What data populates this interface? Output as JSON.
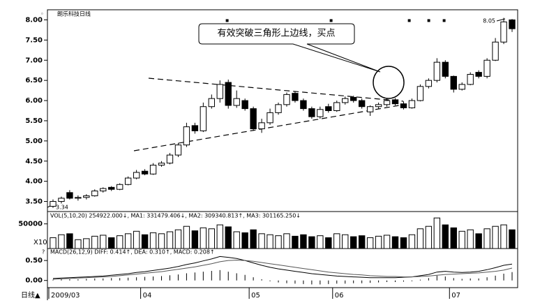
{
  "chart_data": {
    "type": "candlestick",
    "title": "朗乐科技日线",
    "annotation": "有效突破三角形上边线，买点",
    "period_label": "日线▲",
    "categories": [
      "2009/03",
      null,
      null,
      null,
      null,
      null,
      null,
      null,
      null,
      null,
      null,
      "04",
      null,
      null,
      null,
      null,
      null,
      null,
      null,
      null,
      null,
      null,
      null,
      null,
      "05",
      null,
      null,
      null,
      null,
      null,
      null,
      null,
      null,
      null,
      "06",
      null,
      null,
      null,
      null,
      null,
      null,
      null,
      null,
      null,
      null,
      null,
      null,
      null,
      "07",
      null,
      null,
      null,
      null,
      null,
      null,
      null
    ],
    "open": [
      3.38,
      3.5,
      3.72,
      3.58,
      3.6,
      3.64,
      3.76,
      3.85,
      3.8,
      3.92,
      4.08,
      4.25,
      4.18,
      4.4,
      4.45,
      4.65,
      4.9,
      5.38,
      5.25,
      5.85,
      6.05,
      6.45,
      5.88,
      6,
      5.8,
      5.3,
      5.45,
      5.7,
      5.9,
      6.18,
      6,
      5.8,
      5.6,
      5.85,
      5.75,
      5.95,
      6.08,
      6,
      5.72,
      5.85,
      5.9,
      6.02,
      5.92,
      5.82,
      6,
      6.35,
      6.5,
      6.95,
      6.6,
      6.28,
      6.4,
      6.7,
      6.6,
      7,
      7.45,
      8
    ],
    "high": [
      3.55,
      3.62,
      3.78,
      3.65,
      3.68,
      3.8,
      3.85,
      3.88,
      3.95,
      4.12,
      4.28,
      4.3,
      4.45,
      4.5,
      4.7,
      4.95,
      5.45,
      5.45,
      5.95,
      6.15,
      6.5,
      6.52,
      6.25,
      6.05,
      5.85,
      5.55,
      5.8,
      5.95,
      6.2,
      6.22,
      6.05,
      5.85,
      5.85,
      5.92,
      6,
      6.1,
      6.12,
      6.05,
      5.88,
      5.95,
      6.05,
      6.06,
      5.98,
      6.05,
      6.4,
      6.55,
      7.05,
      7,
      6.62,
      6.45,
      6.7,
      6.75,
      7.05,
      7.55,
      8.05,
      8.02
    ],
    "low": [
      3.34,
      3.45,
      3.55,
      3.52,
      3.55,
      3.62,
      3.72,
      3.76,
      3.78,
      3.9,
      4.05,
      4.15,
      4.16,
      4.36,
      4.42,
      4.6,
      4.85,
      5.18,
      5.22,
      5.8,
      5.95,
      5.8,
      5.82,
      5.75,
      5.25,
      5.2,
      5.4,
      5.65,
      5.85,
      5.95,
      5.75,
      5.55,
      5.55,
      5.7,
      5.72,
      5.9,
      5.95,
      5.8,
      5.62,
      5.8,
      5.85,
      5.88,
      5.78,
      5.8,
      5.98,
      6.3,
      6.45,
      6.55,
      6.2,
      6.25,
      6.38,
      6.55,
      6.55,
      6.98,
      7.4,
      7.7
    ],
    "close": [
      3.5,
      3.58,
      3.58,
      3.6,
      3.64,
      3.76,
      3.82,
      3.8,
      3.92,
      4.08,
      4.22,
      4.18,
      4.4,
      4.45,
      4.65,
      4.9,
      5.35,
      5.25,
      5.85,
      6.05,
      6.4,
      5.88,
      6.05,
      5.8,
      5.3,
      5.45,
      5.7,
      5.9,
      6.15,
      6,
      5.8,
      5.6,
      5.78,
      5.75,
      5.95,
      6.05,
      6,
      5.85,
      5.85,
      5.9,
      6,
      5.92,
      5.82,
      6,
      6.35,
      6.5,
      6.95,
      6.6,
      6.28,
      6.4,
      6.65,
      6.6,
      7,
      7.45,
      7.95,
      7.78
    ],
    "up_color": "#ffffff",
    "down_color": "#000000",
    "ylim": [
      3.25,
      8.25
    ],
    "yticks": [
      {
        "value": 3.5,
        "label": "3.50"
      },
      {
        "value": 4,
        "label": "4.00"
      },
      {
        "value": 4.5,
        "label": "4.50"
      },
      {
        "value": 5,
        "label": "5.00"
      },
      {
        "value": 5.5,
        "label": "5.50"
      },
      {
        "value": 6,
        "label": "6.00"
      },
      {
        "value": 6.5,
        "label": "6.50"
      },
      {
        "value": 7,
        "label": "7.00"
      },
      {
        "value": 7.5,
        "label": "7.50"
      },
      {
        "value": 8,
        "label": "8.00"
      }
    ],
    "volume": {
      "legend": "VOL(5,10,20) 254922.000↓, MA1: 331479.406↓, MA2: 309340.813↑, MA3: 301165.250↓",
      "unit_label": "X10",
      "values": [
        22000,
        28000,
        30000,
        18000,
        20000,
        25000,
        27000,
        22000,
        26000,
        30000,
        35000,
        28000,
        32000,
        30000,
        34000,
        38000,
        45000,
        36000,
        42000,
        40000,
        48000,
        44000,
        34000,
        32000,
        38000,
        30000,
        28000,
        26000,
        30000,
        25000,
        28000,
        24000,
        26000,
        22000,
        30000,
        28000,
        24000,
        26000,
        22000,
        25000,
        27000,
        24000,
        22000,
        28000,
        40000,
        45000,
        62000,
        48000,
        42000,
        35000,
        38000,
        30000,
        40000,
        45000,
        48000,
        38000
      ],
      "ylim": [
        0,
        75000
      ],
      "yticks": [
        50000
      ]
    },
    "macd": {
      "legend": "MACD(26,12,9) DIFF: 0.414↑, DEA: 0.310↑, MACD: 0.208↑",
      "histogram": [
        0.02,
        0.03,
        0.03,
        0.03,
        0.04,
        0.05,
        0.05,
        0.06,
        0.06,
        0.07,
        0.08,
        0.09,
        0.1,
        0.11,
        0.13,
        0.15,
        0.18,
        0.2,
        0.22,
        0.24,
        0.26,
        0.22,
        0.18,
        0.14,
        0.08,
        0.03,
        -0.02,
        -0.05,
        -0.07,
        -0.08,
        -0.09,
        -0.1,
        -0.1,
        -0.09,
        -0.08,
        -0.08,
        -0.07,
        -0.07,
        -0.06,
        -0.05,
        -0.04,
        -0.04,
        -0.03,
        -0.02,
        0.02,
        0.06,
        0.12,
        0.1,
        0.06,
        0.04,
        0.05,
        0.05,
        0.08,
        0.12,
        0.17,
        0.21
      ],
      "diff": [
        0.05,
        0.06,
        0.07,
        0.08,
        0.09,
        0.1,
        0.11,
        0.13,
        0.15,
        0.17,
        0.2,
        0.22,
        0.25,
        0.28,
        0.31,
        0.35,
        0.4,
        0.44,
        0.49,
        0.54,
        0.6,
        0.58,
        0.55,
        0.5,
        0.44,
        0.38,
        0.33,
        0.29,
        0.26,
        0.23,
        0.2,
        0.17,
        0.15,
        0.13,
        0.11,
        0.1,
        0.09,
        0.08,
        0.07,
        0.07,
        0.07,
        0.07,
        0.08,
        0.09,
        0.12,
        0.15,
        0.21,
        0.23,
        0.21,
        0.2,
        0.21,
        0.23,
        0.27,
        0.32,
        0.38,
        0.41
      ],
      "dea": [
        0.03,
        0.04,
        0.05,
        0.06,
        0.07,
        0.08,
        0.09,
        0.1,
        0.12,
        0.14,
        0.16,
        0.18,
        0.2,
        0.22,
        0.25,
        0.28,
        0.31,
        0.34,
        0.38,
        0.42,
        0.47,
        0.5,
        0.51,
        0.5,
        0.48,
        0.45,
        0.42,
        0.39,
        0.36,
        0.33,
        0.3,
        0.27,
        0.24,
        0.21,
        0.19,
        0.17,
        0.15,
        0.14,
        0.12,
        0.11,
        0.1,
        0.1,
        0.09,
        0.09,
        0.1,
        0.11,
        0.13,
        0.15,
        0.16,
        0.17,
        0.18,
        0.19,
        0.21,
        0.23,
        0.26,
        0.31
      ],
      "diff_color": "#000000",
      "dea_color": "#555555",
      "ylim": [
        -0.18,
        0.8
      ],
      "yticks": [
        {
          "value": 0,
          "label": "0.00"
        },
        {
          "value": 0.5,
          "label": "0.50"
        }
      ]
    }
  }
}
